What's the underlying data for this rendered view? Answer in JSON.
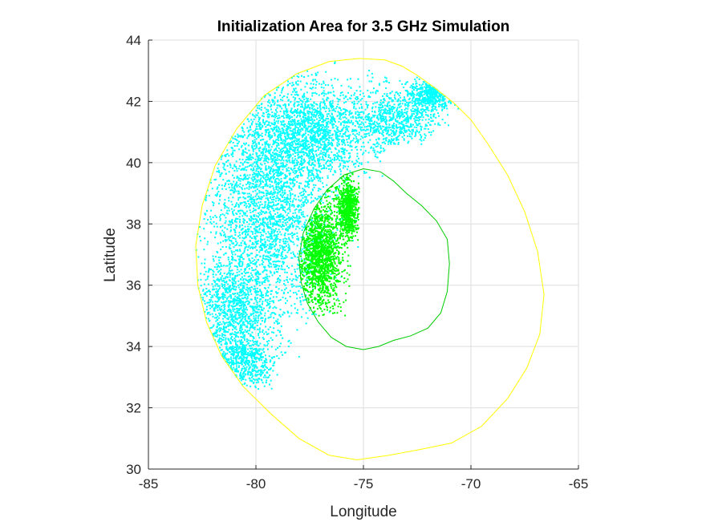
{
  "chart_data": {
    "type": "scatter",
    "title": "Initialization Area for 3.5 GHz Simulation",
    "xlabel": "Longitude",
    "ylabel": "Latitude",
    "xlim": [
      -85,
      -65
    ],
    "ylim": [
      30,
      44
    ],
    "xticks": [
      -85,
      -80,
      -75,
      -70,
      -65
    ],
    "yticks": [
      30,
      32,
      34,
      36,
      38,
      40,
      42,
      44
    ],
    "xtick_labels": [
      "-85",
      "-80",
      "-75",
      "-70",
      "-65"
    ],
    "ytick_labels": [
      "30",
      "32",
      "34",
      "36",
      "38",
      "40",
      "42",
      "44"
    ],
    "grid": true,
    "legend": null,
    "colors": {
      "outer_boundary": "#ffff00",
      "inner_boundary": "#00cc00",
      "outer_points": "#00ffff",
      "inner_points": "#00ff00"
    },
    "boundaries": [
      {
        "id": "outer",
        "points": [
          [
            -75.2,
            43.4
          ],
          [
            -74.0,
            43.35
          ],
          [
            -73.2,
            43.15
          ],
          [
            -72.5,
            42.85
          ],
          [
            -71.7,
            42.45
          ],
          [
            -70.8,
            41.95
          ],
          [
            -70.0,
            41.4
          ],
          [
            -69.2,
            40.6
          ],
          [
            -68.3,
            39.6
          ],
          [
            -67.5,
            38.4
          ],
          [
            -66.9,
            37.1
          ],
          [
            -66.6,
            35.7
          ],
          [
            -66.8,
            34.4
          ],
          [
            -67.4,
            33.3
          ],
          [
            -68.3,
            32.3
          ],
          [
            -69.5,
            31.4
          ],
          [
            -70.9,
            30.85
          ],
          [
            -72.3,
            30.65
          ],
          [
            -73.8,
            30.45
          ],
          [
            -75.3,
            30.3
          ],
          [
            -76.6,
            30.45
          ],
          [
            -78.0,
            31.0
          ],
          [
            -79.3,
            31.8
          ],
          [
            -80.6,
            32.7
          ],
          [
            -81.6,
            33.7
          ],
          [
            -82.3,
            34.8
          ],
          [
            -82.7,
            36.0
          ],
          [
            -82.8,
            37.3
          ],
          [
            -82.5,
            38.6
          ],
          [
            -81.9,
            39.9
          ],
          [
            -80.9,
            41.1
          ],
          [
            -79.6,
            42.2
          ],
          [
            -78.1,
            42.9
          ],
          [
            -76.6,
            43.3
          ],
          [
            -75.2,
            43.4
          ]
        ]
      },
      {
        "id": "inner",
        "points": [
          [
            -75.0,
            39.8
          ],
          [
            -74.2,
            39.7
          ],
          [
            -73.6,
            39.4
          ],
          [
            -73.0,
            39.0
          ],
          [
            -72.3,
            38.6
          ],
          [
            -71.6,
            38.1
          ],
          [
            -71.1,
            37.5
          ],
          [
            -71.0,
            36.7
          ],
          [
            -71.1,
            35.8
          ],
          [
            -71.4,
            35.1
          ],
          [
            -72.0,
            34.6
          ],
          [
            -72.8,
            34.35
          ],
          [
            -73.6,
            34.2
          ],
          [
            -74.3,
            34.0
          ],
          [
            -75.0,
            33.9
          ],
          [
            -75.8,
            34.0
          ],
          [
            -76.5,
            34.3
          ],
          [
            -77.1,
            34.8
          ],
          [
            -77.6,
            35.4
          ],
          [
            -77.9,
            36.1
          ],
          [
            -78.0,
            36.9
          ],
          [
            -77.8,
            37.7
          ],
          [
            -77.3,
            38.5
          ],
          [
            -76.7,
            39.1
          ],
          [
            -75.9,
            39.6
          ],
          [
            -75.0,
            39.8
          ]
        ]
      }
    ],
    "series": [
      {
        "id": "outer-points",
        "color_key": "outer_points",
        "count": 7000,
        "regions": [
          {
            "center": [
              -79.5,
              38.5
            ],
            "spread": [
              2.6,
              3.4
            ],
            "weight": 0.35
          },
          {
            "center": [
              -77.5,
              41.0
            ],
            "spread": [
              2.6,
              1.5
            ],
            "weight": 0.25
          },
          {
            "center": [
              -81.0,
              35.2
            ],
            "spread": [
              1.6,
              1.6
            ],
            "weight": 0.15
          },
          {
            "center": [
              -73.5,
              41.4
            ],
            "spread": [
              1.6,
              0.9
            ],
            "weight": 0.1
          },
          {
            "center": [
              -71.8,
              42.2
            ],
            "spread": [
              1.0,
              0.45
            ],
            "weight": 0.07
          },
          {
            "center": [
              -80.5,
              33.5
            ],
            "spread": [
              1.2,
              0.8
            ],
            "weight": 0.08
          }
        ]
      },
      {
        "id": "inner-points",
        "color_key": "inner_points",
        "count": 2200,
        "regions": [
          {
            "center": [
              -77.0,
              37.0
            ],
            "spread": [
              0.9,
              1.6
            ],
            "weight": 0.7
          },
          {
            "center": [
              -75.7,
              38.5
            ],
            "spread": [
              0.45,
              0.9
            ],
            "weight": 0.3
          }
        ]
      }
    ]
  }
}
